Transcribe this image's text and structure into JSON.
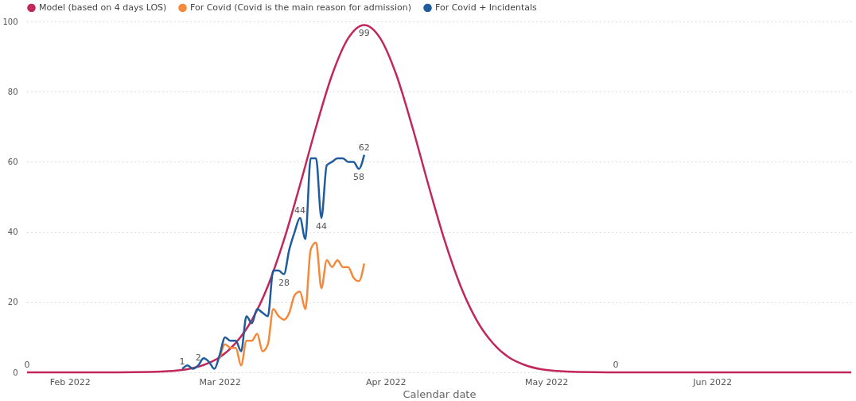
{
  "chart_data": {
    "type": "line",
    "xlabel": "Calendar date",
    "legend": "top left",
    "grid": "y",
    "marker": "none",
    "line_style": "solid",
    "xlim": [
      "2022-01-24",
      "2022-06-27"
    ],
    "xticks": [
      {
        "value": "2022-02-01",
        "label": "Feb 2022"
      },
      {
        "value": "2022-03-01",
        "label": "Mar 2022"
      },
      {
        "value": "2022-04-01",
        "label": "Apr 2022"
      },
      {
        "value": "2022-05-01",
        "label": "May 2022"
      },
      {
        "value": "2022-06-01",
        "label": "Jun 2022"
      }
    ],
    "ylim": [
      0,
      100
    ],
    "yticks": [
      0,
      20,
      40,
      60,
      80,
      100
    ],
    "series": [
      {
        "name": "Model (based on 4 days LOS)",
        "color": "#c2275a",
        "x": [
          "2022-01-24",
          "2022-02-10",
          "2022-02-16",
          "2022-02-20",
          "2022-02-23",
          "2022-02-26",
          "2022-03-01",
          "2022-03-04",
          "2022-03-07",
          "2022-03-10",
          "2022-03-13",
          "2022-03-16",
          "2022-03-19",
          "2022-03-22",
          "2022-03-25",
          "2022-03-28",
          "2022-03-31",
          "2022-04-03",
          "2022-04-06",
          "2022-04-09",
          "2022-04-12",
          "2022-04-15",
          "2022-04-18",
          "2022-04-21",
          "2022-04-24",
          "2022-04-27",
          "2022-04-30",
          "2022-05-03",
          "2022-05-07",
          "2022-05-14",
          "2022-06-27"
        ],
        "values": [
          0,
          0,
          0.1,
          0.4,
          0.9,
          2.1,
          4.3,
          8.4,
          14.9,
          24.6,
          37.7,
          53.4,
          69.9,
          84.8,
          95.2,
          99,
          95.2,
          84.8,
          69.9,
          53.4,
          37.7,
          24.6,
          14.9,
          8.4,
          4.3,
          2.1,
          0.9,
          0.4,
          0.1,
          0,
          0
        ],
        "value_labels": [
          "0",
          null,
          null,
          null,
          null,
          null,
          null,
          null,
          null,
          null,
          null,
          null,
          null,
          null,
          null,
          "99",
          null,
          null,
          null,
          null,
          null,
          null,
          null,
          null,
          null,
          null,
          null,
          null,
          null,
          "0",
          null
        ]
      },
      {
        "name": "For Covid (Covid is the main reason for admission)",
        "color": "#f5883a",
        "x": [
          "2022-03-01",
          "2022-03-02",
          "2022-03-03",
          "2022-03-04",
          "2022-03-05",
          "2022-03-06",
          "2022-03-07",
          "2022-03-08",
          "2022-03-09",
          "2022-03-10",
          "2022-03-11",
          "2022-03-12",
          "2022-03-13",
          "2022-03-14",
          "2022-03-15",
          "2022-03-16",
          "2022-03-17",
          "2022-03-18",
          "2022-03-19",
          "2022-03-20",
          "2022-03-21",
          "2022-03-22",
          "2022-03-23",
          "2022-03-24",
          "2022-03-25",
          "2022-03-26",
          "2022-03-27",
          "2022-03-28"
        ],
        "values": [
          4,
          8,
          7,
          7,
          2,
          9,
          9,
          11,
          6,
          8,
          18,
          16,
          15,
          17,
          22,
          23,
          18,
          35,
          37,
          24,
          32,
          30,
          32,
          30,
          30,
          27,
          26,
          31
        ]
      },
      {
        "name": "For Covid + Incidentals",
        "color": "#1f5c9e",
        "x": [
          "2022-02-22",
          "2022-02-23",
          "2022-02-24",
          "2022-02-25",
          "2022-02-26",
          "2022-02-27",
          "2022-02-28",
          "2022-03-01",
          "2022-03-02",
          "2022-03-03",
          "2022-03-04",
          "2022-03-05",
          "2022-03-06",
          "2022-03-07",
          "2022-03-08",
          "2022-03-09",
          "2022-03-10",
          "2022-03-11",
          "2022-03-12",
          "2022-03-13",
          "2022-03-14",
          "2022-03-15",
          "2022-03-16",
          "2022-03-17",
          "2022-03-18",
          "2022-03-19",
          "2022-03-20",
          "2022-03-21",
          "2022-03-22",
          "2022-03-23",
          "2022-03-24",
          "2022-03-25",
          "2022-03-26",
          "2022-03-27",
          "2022-03-28"
        ],
        "values": [
          1,
          2,
          1,
          2,
          4,
          3,
          1,
          5,
          10,
          9,
          9,
          6,
          16,
          14,
          18,
          17,
          16,
          29,
          29,
          28,
          35,
          40,
          44,
          38,
          61,
          61,
          44,
          59,
          60,
          61,
          61,
          60,
          60,
          58,
          62
        ],
        "value_labels": [
          "1",
          null,
          null,
          "2",
          null,
          null,
          null,
          null,
          null,
          null,
          null,
          null,
          null,
          null,
          null,
          null,
          null,
          null,
          null,
          "28",
          null,
          null,
          "44",
          null,
          null,
          null,
          "44",
          null,
          null,
          null,
          null,
          null,
          null,
          "58",
          "62"
        ]
      }
    ]
  }
}
